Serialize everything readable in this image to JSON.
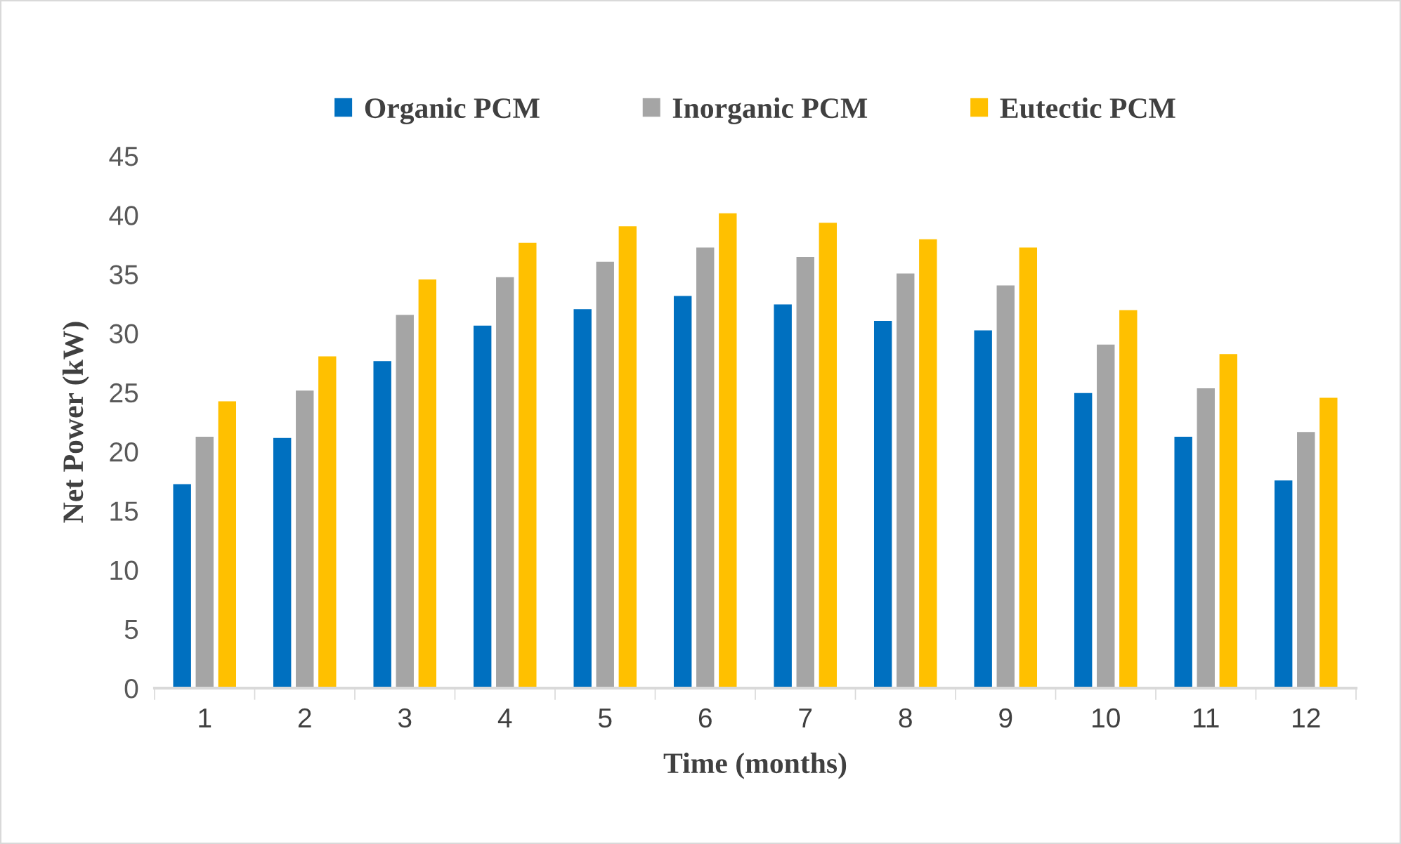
{
  "chart_data": {
    "type": "bar",
    "xlabel": "Time (months)",
    "ylabel": "Net Power (kW)",
    "categories": [
      "1",
      "2",
      "3",
      "4",
      "5",
      "6",
      "7",
      "8",
      "9",
      "10",
      "11",
      "12"
    ],
    "series": [
      {
        "name": "Organic PCM",
        "color": "#0070c0",
        "values": [
          17.3,
          21.2,
          27.7,
          30.7,
          32.1,
          33.2,
          32.5,
          31.1,
          30.3,
          25.0,
          21.3,
          17.6
        ]
      },
      {
        "name": "Inorganic PCM",
        "color": "#a5a5a5",
        "values": [
          21.3,
          25.2,
          31.6,
          34.8,
          36.1,
          37.3,
          36.5,
          35.1,
          34.1,
          29.1,
          25.4,
          21.7
        ]
      },
      {
        "name": "Eutectic PCM",
        "color": "#ffc000",
        "values": [
          24.3,
          28.1,
          34.6,
          37.7,
          39.1,
          40.2,
          39.4,
          38.0,
          37.3,
          32.0,
          28.3,
          24.6
        ]
      }
    ],
    "ylim": [
      0,
      45
    ],
    "yticks": [
      0,
      5,
      10,
      15,
      20,
      25,
      30,
      35,
      40,
      45
    ],
    "grid": false,
    "legend": "top"
  }
}
